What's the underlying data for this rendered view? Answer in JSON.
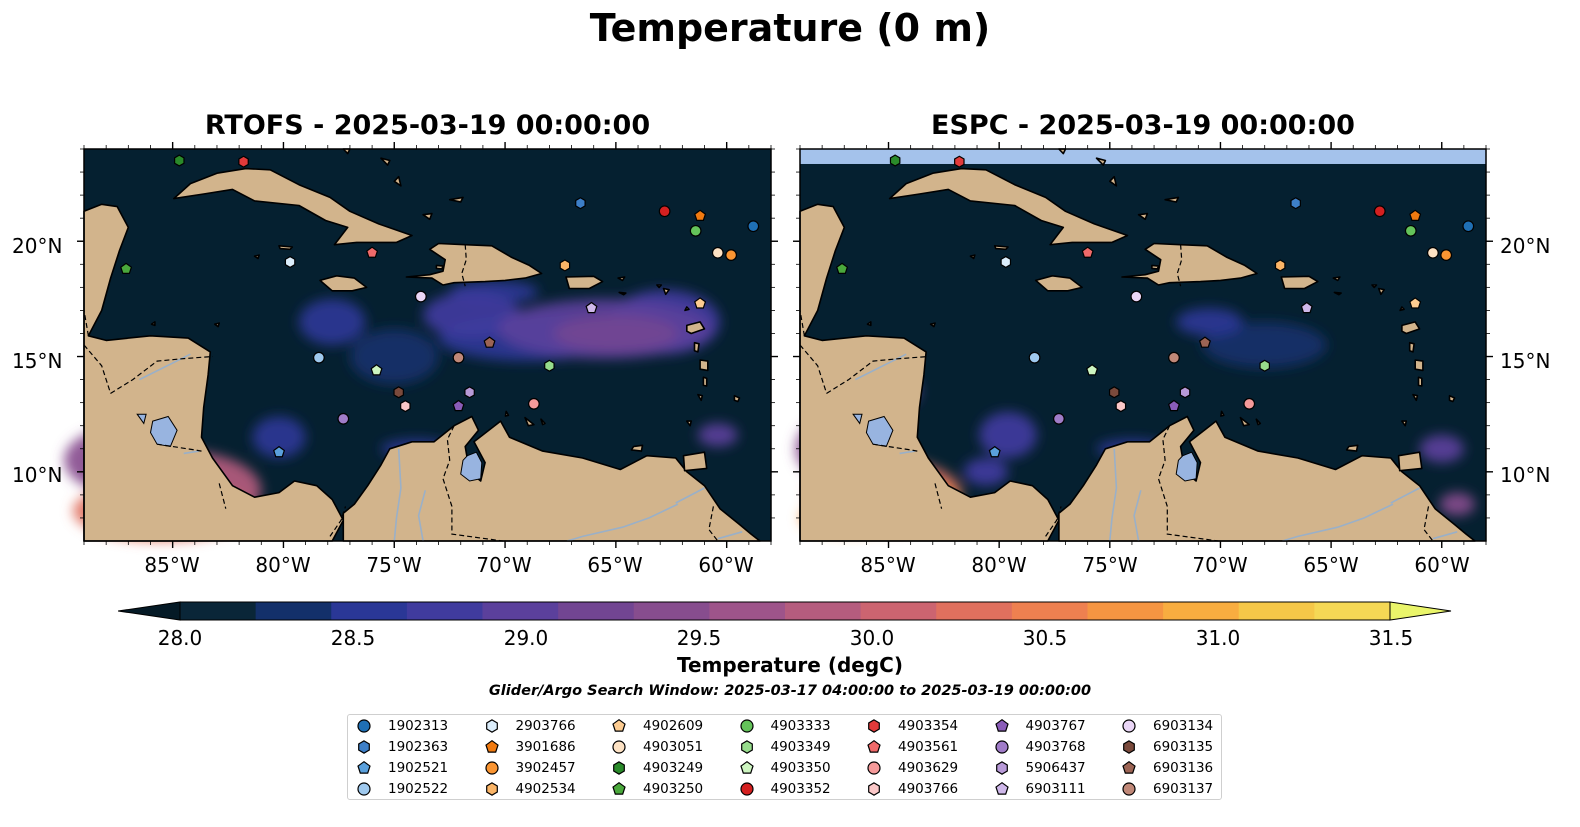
{
  "figure": {
    "title": "Temperature (0 m)",
    "search_window": "Glider/Argo Search Window: 2025-03-17 04:00:00 to 2025-03-19 00:00:00"
  },
  "panels": [
    {
      "id": "left",
      "title": "RTOFS - 2025-03-19 00:00:00"
    },
    {
      "id": "right",
      "title": "ESPC - 2025-03-19 00:00:00"
    }
  ],
  "map": {
    "extent": {
      "lon_min": -89,
      "lon_max": -58,
      "lat_min": 7,
      "lat_max": 24
    },
    "lon_ticks": [
      -85,
      -80,
      -75,
      -70,
      -65,
      -60
    ],
    "lon_tick_labels": [
      "85°W",
      "80°W",
      "75°W",
      "70°W",
      "65°W",
      "60°W"
    ],
    "lat_ticks": [
      10,
      15,
      20
    ],
    "lat_tick_labels": [
      "10°N",
      "15°N",
      "20°N"
    ],
    "colors": {
      "ocean_base": "#052030",
      "land": "#d2b48c",
      "lakes": "#98b4e0",
      "rivers": "#9ab0c8",
      "no_data": "#a4c2eb"
    }
  },
  "colorbar": {
    "label": "Temperature (degC)",
    "min": 28.0,
    "max": 31.5,
    "step": 0.25,
    "tick_labels": [
      "28.0",
      "28.5",
      "29.0",
      "29.5",
      "30.0",
      "30.5",
      "31.0",
      "31.5"
    ],
    "colors": [
      "#0a2638",
      "#13306a",
      "#2a3796",
      "#403b9e",
      "#5b409c",
      "#724592",
      "#874d8e",
      "#9e548a",
      "#b55c7e",
      "#cc6470",
      "#e0705e",
      "#ee8050",
      "#f59542",
      "#f8ad40",
      "#f5c748",
      "#f5d855"
    ],
    "extend_high": "#eaf56a",
    "extend_low": "#051a26"
  },
  "floats": [
    {
      "id": "1902313",
      "color": "#1f6fb4",
      "marker": "circle",
      "lon": -58.8,
      "lat": 20.65
    },
    {
      "id": "1902363",
      "color": "#3d7fc8",
      "marker": "hexagon",
      "lon": -66.6,
      "lat": 21.65
    },
    {
      "id": "1902521",
      "color": "#5aa0dc",
      "marker": "pentagon",
      "lon": -80.2,
      "lat": 10.85
    },
    {
      "id": "1902522",
      "color": "#9fc9ee",
      "marker": "circle",
      "lon": -78.4,
      "lat": 14.95
    },
    {
      "id": "2903766",
      "color": "#dbedfb",
      "marker": "hexagon",
      "lon": -79.7,
      "lat": 19.1
    },
    {
      "id": "3901686",
      "color": "#f07a10",
      "marker": "pentagon",
      "lon": -61.2,
      "lat": 21.1
    },
    {
      "id": "3902457",
      "color": "#fa9532",
      "marker": "circle",
      "lon": -59.8,
      "lat": 19.4
    },
    {
      "id": "4902534",
      "color": "#fbb567",
      "marker": "hexagon",
      "lon": -67.3,
      "lat": 18.95
    },
    {
      "id": "4902609",
      "color": "#fdcc91",
      "marker": "pentagon",
      "lon": -61.2,
      "lat": 17.3
    },
    {
      "id": "4903051",
      "color": "#fde2c4",
      "marker": "circle",
      "lon": -60.4,
      "lat": 19.5
    },
    {
      "id": "4903249",
      "color": "#2a8a2a",
      "marker": "hexagon",
      "lon": -84.7,
      "lat": 23.5
    },
    {
      "id": "4903250",
      "color": "#4aa83c",
      "marker": "pentagon",
      "lon": -87.1,
      "lat": 18.8
    },
    {
      "id": "4903333",
      "color": "#64c35a",
      "marker": "circle",
      "lon": -61.4,
      "lat": 20.45
    },
    {
      "id": "4903349",
      "color": "#97dc8c",
      "marker": "hexagon",
      "lon": -68.0,
      "lat": 14.6
    },
    {
      "id": "4903350",
      "color": "#cdf5c0",
      "marker": "pentagon",
      "lon": -75.8,
      "lat": 14.4
    },
    {
      "id": "4903352",
      "color": "#d42020",
      "marker": "circle",
      "lon": -62.8,
      "lat": 21.3
    },
    {
      "id": "4903354",
      "color": "#e23a3a",
      "marker": "hexagon",
      "lon": -81.8,
      "lat": 23.45
    },
    {
      "id": "4903561",
      "color": "#f06a6a",
      "marker": "pentagon",
      "lon": -76.0,
      "lat": 19.5
    },
    {
      "id": "4903629",
      "color": "#f59a9a",
      "marker": "circle",
      "lon": -68.7,
      "lat": 12.95
    },
    {
      "id": "4903766",
      "color": "#fbc8c8",
      "marker": "hexagon",
      "lon": -74.5,
      "lat": 12.85
    },
    {
      "id": "4903767",
      "color": "#8a5cb8",
      "marker": "pentagon",
      "lon": -72.1,
      "lat": 12.85
    },
    {
      "id": "4903768",
      "color": "#a07cc8",
      "marker": "circle",
      "lon": -77.3,
      "lat": 12.3
    },
    {
      "id": "5906437",
      "color": "#b89ad8",
      "marker": "hexagon",
      "lon": -71.6,
      "lat": 13.45
    },
    {
      "id": "6903111",
      "color": "#cfb8ea",
      "marker": "pentagon",
      "lon": -66.1,
      "lat": 17.1
    },
    {
      "id": "6903134",
      "color": "#ead6f6",
      "marker": "circle",
      "lon": -73.8,
      "lat": 17.6
    },
    {
      "id": "6903135",
      "color": "#7a4a3c",
      "marker": "hexagon",
      "lon": -74.8,
      "lat": 13.45
    },
    {
      "id": "6903136",
      "color": "#9c6454",
      "marker": "pentagon",
      "lon": -70.7,
      "lat": 15.6
    },
    {
      "id": "6903137",
      "color": "#c08878",
      "marker": "circle",
      "lon": -72.1,
      "lat": 14.95
    }
  ]
}
